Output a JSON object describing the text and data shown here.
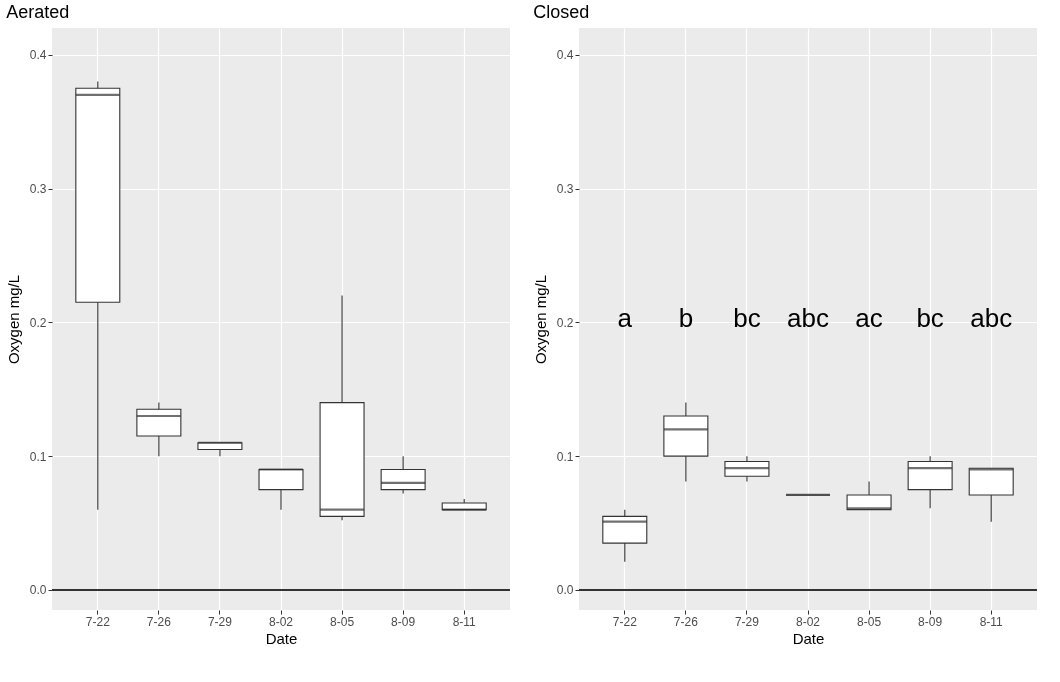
{
  "chart_data": [
    {
      "type": "box",
      "title": "Aerated",
      "xlabel": "Date",
      "ylabel": "Oxygen mg/L",
      "categories": [
        "7-22",
        "7-26",
        "7-29",
        "8-02",
        "8-05",
        "8-09",
        "8-11"
      ],
      "boxes": [
        {
          "low": 0.06,
          "q1": 0.215,
          "median": 0.37,
          "q3": 0.375,
          "high": 0.38
        },
        {
          "low": 0.1,
          "q1": 0.115,
          "median": 0.13,
          "q3": 0.135,
          "high": 0.14
        },
        {
          "low": 0.1,
          "q1": 0.105,
          "median": 0.11,
          "q3": 0.11,
          "high": 0.11
        },
        {
          "low": 0.06,
          "q1": 0.075,
          "median": 0.09,
          "q3": 0.09,
          "high": 0.09
        },
        {
          "low": 0.052,
          "q1": 0.055,
          "median": 0.06,
          "q3": 0.14,
          "high": 0.22
        },
        {
          "low": 0.072,
          "q1": 0.075,
          "median": 0.08,
          "q3": 0.09,
          "high": 0.1
        },
        {
          "low": 0.06,
          "q1": 0.06,
          "median": 0.06,
          "q3": 0.065,
          "high": 0.068
        }
      ],
      "ylim": [
        -0.015,
        0.42
      ],
      "yticks": [
        {
          "value": 0,
          "label": "0.0"
        },
        0.1,
        0.2,
        0.3,
        0.4
      ],
      "grid": true,
      "ref_lines": [
        {
          "axis": "y",
          "value": 0,
          "color": "#333333"
        }
      ]
    },
    {
      "type": "box",
      "title": "Closed",
      "xlabel": "Date",
      "ylabel": "Oxygen mg/L",
      "categories": [
        "7-22",
        "7-26",
        "7-29",
        "8-02",
        "8-05",
        "8-09",
        "8-11"
      ],
      "boxes": [
        {
          "low": 0.021,
          "q1": 0.035,
          "median": 0.051,
          "q3": 0.055,
          "high": 0.06
        },
        {
          "low": 0.081,
          "q1": 0.1,
          "median": 0.12,
          "q3": 0.13,
          "high": 0.14
        },
        {
          "low": 0.081,
          "q1": 0.085,
          "median": 0.091,
          "q3": 0.096,
          "high": 0.1
        },
        {
          "low": 0.071,
          "q1": 0.071,
          "median": 0.071,
          "q3": 0.071,
          "high": 0.071
        },
        {
          "low": 0.06,
          "q1": 0.06,
          "median": 0.061,
          "q3": 0.071,
          "high": 0.081
        },
        {
          "low": 0.061,
          "q1": 0.075,
          "median": 0.091,
          "q3": 0.096,
          "high": 0.1
        },
        {
          "low": 0.051,
          "q1": 0.071,
          "median": 0.09,
          "q3": 0.091,
          "high": 0.091
        }
      ],
      "ylim": [
        -0.015,
        0.42
      ],
      "yticks": [
        {
          "value": 0,
          "label": "0.0"
        },
        0.1,
        0.2,
        0.3,
        0.4
      ],
      "grid": true,
      "ref_lines": [
        {
          "axis": "y",
          "value": 0,
          "color": "#333333"
        }
      ],
      "annotations": [
        "a",
        "b",
        "bc",
        "abc",
        "ac",
        "bc",
        "abc"
      ]
    }
  ]
}
